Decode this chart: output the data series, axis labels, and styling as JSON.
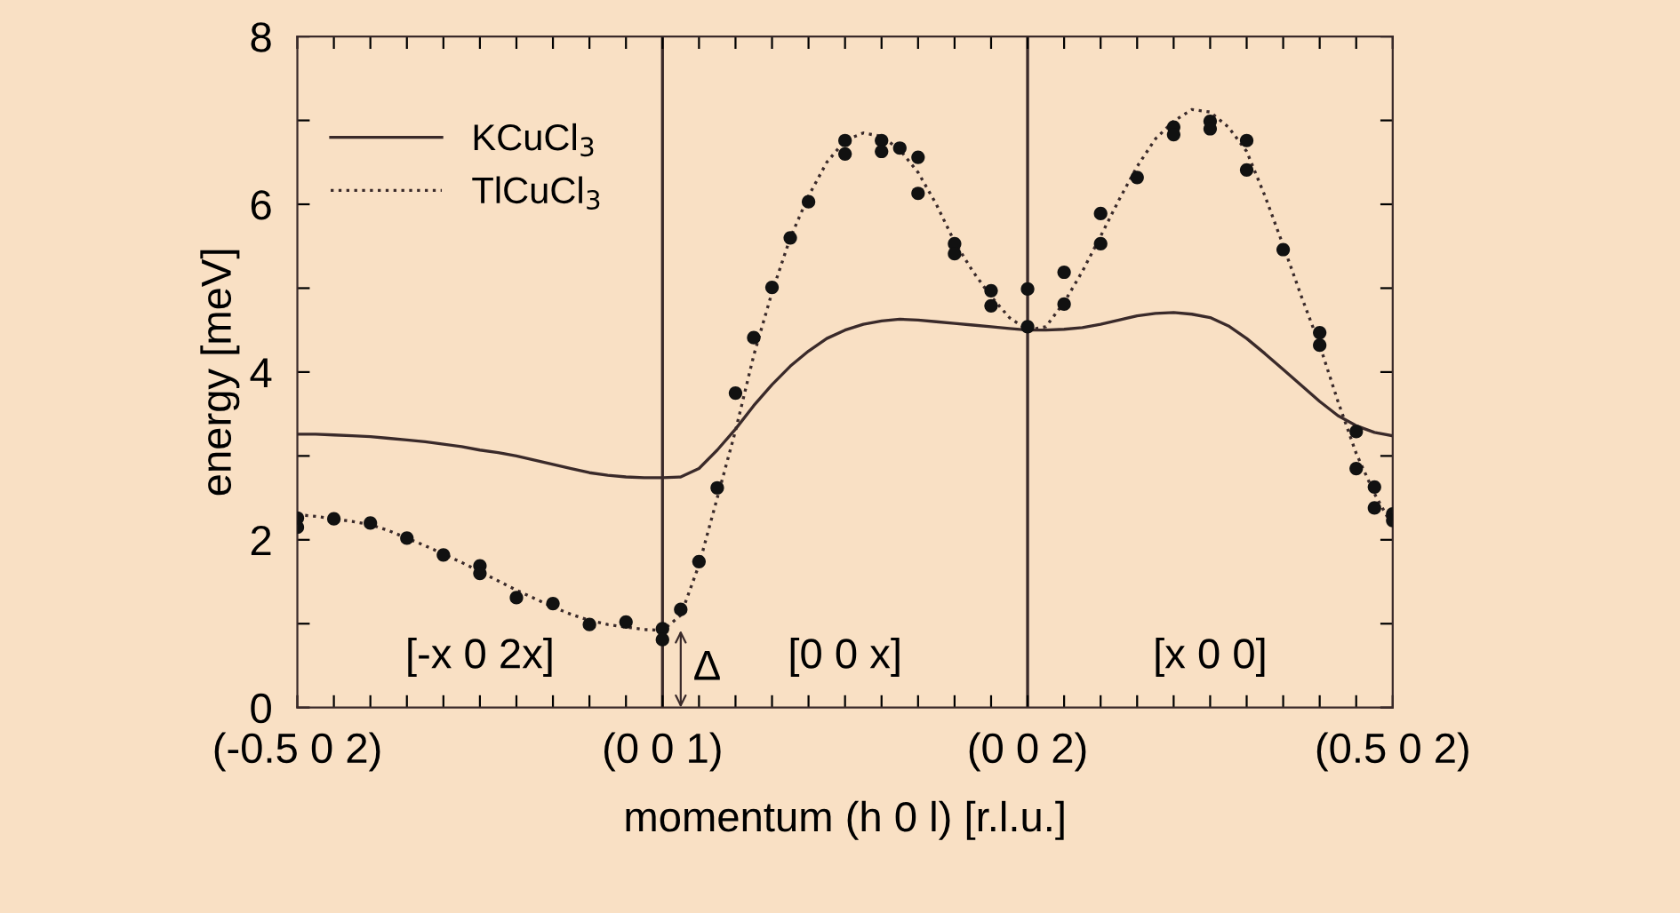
{
  "chart_data": {
    "type": "line",
    "xlabel": "momentum (h 0 l) [r.l.u.]",
    "ylabel": "energy [meV]",
    "categories": [
      "(-0.5 0 2)",
      null,
      null,
      null,
      null,
      null,
      null,
      null,
      null,
      null,
      null,
      null,
      null,
      null,
      null,
      null,
      null,
      null,
      null,
      null,
      "(0 0 1)",
      null,
      null,
      null,
      null,
      null,
      null,
      null,
      null,
      null,
      null,
      null,
      null,
      null,
      null,
      null,
      null,
      null,
      null,
      null,
      "(0 0 2)",
      null,
      null,
      null,
      null,
      null,
      null,
      null,
      null,
      null,
      null,
      null,
      null,
      null,
      null,
      null,
      null,
      null,
      null,
      null,
      "(0.5 0 2)"
    ],
    "ylim": [
      0,
      8
    ],
    "yticks": [
      0,
      {
        "value": 1,
        "label": null
      },
      2,
      {
        "value": 3,
        "label": null
      },
      4,
      {
        "value": 5,
        "label": null
      },
      6,
      {
        "value": 7,
        "label": null
      },
      8
    ],
    "grid": false,
    "legend": "top left",
    "series": [
      {
        "name": "KCuCl$_{3}$",
        "line_style": "solid",
        "color": "#3a2a2a",
        "values": [
          3.26,
          3.26,
          3.25,
          3.24,
          3.23,
          3.21,
          3.19,
          3.17,
          3.14,
          3.11,
          3.07,
          3.04,
          3.0,
          2.95,
          2.9,
          2.85,
          2.8,
          2.77,
          2.75,
          2.74,
          2.74,
          2.75,
          2.85,
          3.07,
          3.32,
          3.6,
          3.85,
          4.07,
          4.25,
          4.4,
          4.5,
          4.57,
          4.61,
          4.63,
          4.62,
          4.6,
          4.58,
          4.56,
          4.54,
          4.52,
          4.5,
          4.5,
          4.51,
          4.53,
          4.57,
          4.62,
          4.67,
          4.7,
          4.71,
          4.69,
          4.65,
          4.55,
          4.4,
          4.22,
          4.03,
          3.84,
          3.65,
          3.48,
          3.36,
          3.28,
          3.24
        ]
      },
      {
        "name": "TlCuCl$_{3}$",
        "line_style": "dotted",
        "color": "#3a2a2a",
        "values": [
          2.3,
          2.28,
          2.25,
          2.22,
          2.18,
          2.11,
          2.02,
          1.93,
          1.83,
          1.73,
          1.62,
          1.51,
          1.4,
          1.3,
          1.2,
          1.11,
          1.04,
          0.99,
          0.96,
          0.93,
          0.92,
          1.1,
          1.7,
          2.5,
          3.3,
          4.2,
          4.95,
          5.6,
          6.1,
          6.5,
          6.76,
          6.85,
          6.81,
          6.65,
          6.38,
          6.0,
          5.55,
          5.2,
          4.9,
          4.65,
          4.5,
          4.54,
          4.83,
          5.2,
          5.62,
          6.05,
          6.45,
          6.78,
          6.99,
          7.13,
          7.1,
          6.92,
          6.63,
          6.1,
          5.51,
          4.9,
          4.32,
          3.65,
          3.03,
          2.55,
          2.16
        ]
      },
      {
        "type": "scatter",
        "marker": "circle",
        "color": "#111111",
        "values": [
          2.26,
          null,
          2.25,
          null,
          2.2,
          null,
          2.02,
          null,
          1.82,
          null,
          1.69,
          null,
          1.31,
          null,
          1.24,
          null,
          0.99,
          null,
          1.02,
          null,
          0.94,
          1.17,
          1.74,
          2.62,
          3.75,
          4.41,
          5.01,
          5.6,
          6.03,
          null,
          6.76,
          null,
          6.76,
          6.67,
          6.56,
          null,
          5.53,
          null,
          4.97,
          null,
          4.99,
          null,
          5.19,
          null,
          5.89,
          null,
          6.32,
          null,
          6.92,
          null,
          6.99,
          null,
          6.76,
          null,
          5.46,
          null,
          4.47,
          null,
          3.29,
          2.63,
          2.31
        ]
      },
      {
        "type": "scatter",
        "marker": "circle",
        "color": "#111111",
        "values": [
          2.15,
          null,
          null,
          null,
          null,
          null,
          null,
          null,
          null,
          null,
          1.6,
          null,
          null,
          null,
          null,
          null,
          null,
          null,
          null,
          null,
          0.81,
          null,
          null,
          null,
          null,
          null,
          null,
          null,
          null,
          null,
          6.6,
          null,
          6.63,
          null,
          6.13,
          null,
          5.41,
          null,
          4.79,
          null,
          4.54,
          null,
          4.81,
          null,
          5.53,
          null,
          null,
          null,
          6.83,
          null,
          6.9,
          null,
          6.41,
          null,
          null,
          null,
          4.32,
          null,
          2.85,
          2.38,
          2.23
        ]
      }
    ],
    "ref_lines": [
      {
        "axis": "x",
        "value": "(0 0 1)",
        "color": "#3a2a2a"
      },
      {
        "axis": "x",
        "value": "(0 0 2)",
        "color": "#3a2a2a"
      }
    ],
    "annotations": [
      "[-x 0 2x]",
      "[0 0 x]",
      "[x 0 0]",
      "Δ"
    ]
  }
}
